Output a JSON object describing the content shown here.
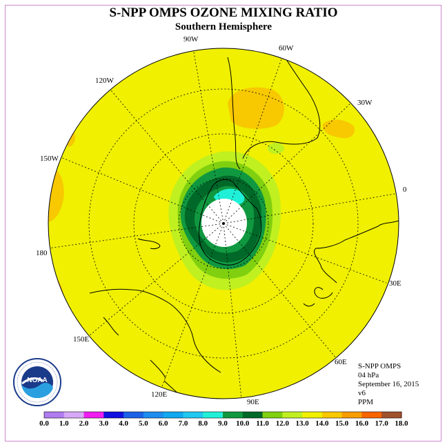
{
  "title": "S-NPP OMPS OZONE MIXING RATIO",
  "subtitle": "Southern Hemisphere",
  "longitude_labels": {
    "w90": "90W",
    "w60": "60W",
    "w30": "30W",
    "e0": "0",
    "w120": "120W",
    "w150": "150W",
    "e180": "180",
    "e30": "30E",
    "e60": "60E",
    "e90": "90E",
    "e120": "120E",
    "e150": "150E"
  },
  "info": {
    "instrument": "S-NPP OMPS",
    "level": "04 hPa",
    "date": "September 16, 2015",
    "version": "v6",
    "units": "PPM"
  },
  "logo": {
    "text": "NOAA",
    "ring_text": "NATIONAL OCEANIC AND ATMOSPHERIC ADMINISTRATION · U.S. DEPARTMENT OF COMMERCE"
  },
  "colorbar": {
    "ticks": [
      "0.0",
      "1.0",
      "2.0",
      "3.0",
      "4.0",
      "5.0",
      "6.0",
      "7.0",
      "8.0",
      "9.0",
      "10.0",
      "11.0",
      "12.0",
      "13.0",
      "14.0",
      "15.0",
      "16.0",
      "17.0",
      "18.0"
    ],
    "colors": [
      "#b07cf0",
      "#d8a8f8",
      "#f01cf0",
      "#1010e0",
      "#1c60e8",
      "#1c8cf0",
      "#10a8f0",
      "#20c8f0",
      "#20f0d8",
      "#109840",
      "#006828",
      "#80d010",
      "#c0f020",
      "#f0f000",
      "#f8c800",
      "#f89c00",
      "#f86400",
      "#f00000",
      "#a0522d"
    ]
  },
  "chart_data": {
    "type": "polar-stereographic contour map",
    "hemisphere": "Southern",
    "quantity": "Ozone mixing ratio",
    "units": "PPM",
    "pressure_level_hPa": 4,
    "date": "September 16, 2015",
    "range": [
      0.0,
      18.0
    ],
    "levels": [
      0,
      1,
      2,
      3,
      4,
      5,
      6,
      7,
      8,
      9,
      10,
      11,
      12,
      13,
      14,
      15,
      16,
      17,
      18
    ],
    "features": {
      "background_range_ppm": [
        12,
        13
      ],
      "local_maxima_range_ppm": [
        13,
        14
      ],
      "polar_vortex_minimum_range_ppm": [
        8,
        10
      ],
      "no_data_region": "south pole (white)"
    }
  }
}
